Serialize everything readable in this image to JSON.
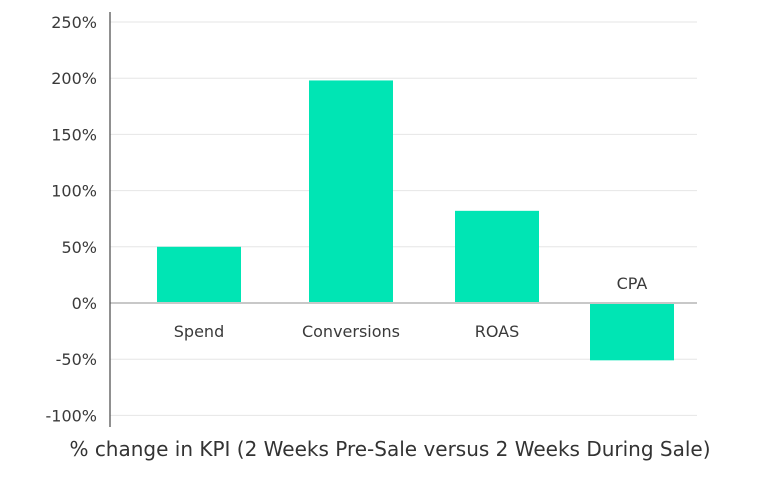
{
  "chart_data": {
    "type": "bar",
    "title": "",
    "xlabel": "% change in KPI  (2 Weeks Pre-Sale versus 2 Weeks During Sale)",
    "ylabel": "",
    "categories": [
      "Spend",
      "Conversions",
      "ROAS",
      "CPA"
    ],
    "values": [
      50,
      198,
      82,
      -51
    ],
    "ylim": [
      -100,
      250
    ],
    "yticks": [
      250,
      200,
      150,
      100,
      50,
      0,
      -50,
      -100
    ],
    "ytick_labels": [
      "250%",
      "200%",
      "150%",
      "100%",
      "50%",
      "0%",
      "-50%",
      "-100%"
    ],
    "grid": true,
    "legend": "none",
    "bar_color": "#00e5b4"
  }
}
